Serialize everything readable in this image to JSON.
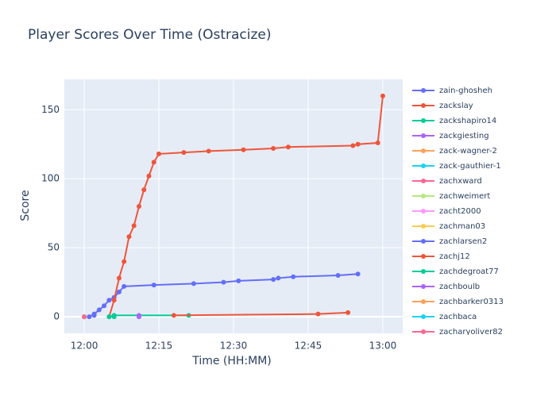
{
  "chart_data": {
    "type": "line",
    "title": "Player Scores Over Time (Ostracize)",
    "x_label": "Time (HH:MM)",
    "y_label": "Score",
    "xlim": [
      "11:56",
      "13:04"
    ],
    "xticks": [
      "12:00",
      "12:15",
      "12:30",
      "12:45",
      "13:00"
    ],
    "ylim": [
      -12,
      172
    ],
    "yticks": [
      0,
      50,
      100,
      150
    ],
    "grid": true,
    "series": [
      {
        "name": "zain-ghosheh",
        "color": "#636efa",
        "x": [
          "12:01",
          "12:02",
          "12:03",
          "12:04",
          "12:05",
          "12:06",
          "12:07",
          "12:08",
          "12:14",
          "12:22",
          "12:28",
          "12:31",
          "12:38",
          "12:39",
          "12:42",
          "12:51",
          "12:55"
        ],
        "values": [
          0,
          2,
          5,
          8,
          12,
          14,
          18,
          22,
          23,
          24,
          25,
          26,
          27,
          28,
          29,
          30,
          31
        ]
      },
      {
        "name": "zackslay",
        "color": "#EF553B",
        "x": [
          "12:05",
          "12:06",
          "12:07",
          "12:08",
          "12:09",
          "12:10",
          "12:11",
          "12:12",
          "12:13",
          "12:14",
          "12:15",
          "12:20",
          "12:25",
          "12:32",
          "12:38",
          "12:41",
          "12:54",
          "12:55",
          "12:59",
          "13:00"
        ],
        "values": [
          0,
          12,
          28,
          40,
          58,
          66,
          80,
          92,
          102,
          112,
          118,
          119,
          120,
          121,
          122,
          123,
          124,
          125,
          126,
          160
        ]
      },
      {
        "name": "zackshapiro14",
        "color": "#00cc96",
        "x": [
          "12:05",
          "12:06",
          "12:21"
        ],
        "values": [
          0,
          1,
          1
        ]
      },
      {
        "name": "zackgiesting",
        "color": "#ab63fa",
        "x": [
          "12:11"
        ],
        "values": [
          1
        ]
      },
      {
        "name": "zack-wagner-2",
        "color": "#FFA15A",
        "x": [
          "12:00"
        ],
        "values": [
          0
        ]
      },
      {
        "name": "zack-gauthier-1",
        "color": "#19d3f3",
        "x": [
          "12:00"
        ],
        "values": [
          0
        ]
      },
      {
        "name": "zachxward",
        "color": "#FF6692",
        "x": [
          "12:00"
        ],
        "values": [
          0
        ]
      },
      {
        "name": "zachweimert",
        "color": "#B6E880",
        "x": [
          "12:00"
        ],
        "values": [
          0
        ]
      },
      {
        "name": "zacht2000",
        "color": "#FF97FF",
        "x": [
          "12:00"
        ],
        "values": [
          0
        ]
      },
      {
        "name": "zachman03",
        "color": "#FECB52",
        "x": [
          "12:00"
        ],
        "values": [
          0
        ]
      },
      {
        "name": "zachlarsen2",
        "color": "#636efa",
        "x": [
          "12:02"
        ],
        "values": [
          1
        ]
      },
      {
        "name": "zachj12",
        "color": "#EF553B",
        "x": [
          "12:18",
          "12:47",
          "12:53"
        ],
        "values": [
          1,
          2,
          3
        ]
      },
      {
        "name": "zachdegroat77",
        "color": "#00cc96",
        "x": [
          "12:06"
        ],
        "values": [
          0
        ]
      },
      {
        "name": "zachboulb",
        "color": "#ab63fa",
        "x": [
          "12:11"
        ],
        "values": [
          0
        ]
      },
      {
        "name": "zachbarker0313",
        "color": "#FFA15A",
        "x": [
          "12:00"
        ],
        "values": [
          0
        ]
      },
      {
        "name": "zachbaca",
        "color": "#19d3f3",
        "x": [
          "12:00"
        ],
        "values": [
          0
        ]
      },
      {
        "name": "zacharyoliver82",
        "color": "#FF6692",
        "x": [
          "12:00"
        ],
        "values": [
          0
        ]
      }
    ]
  }
}
